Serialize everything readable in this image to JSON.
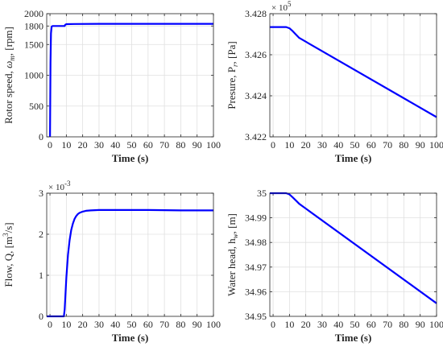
{
  "chart_data": [
    {
      "type": "line",
      "id": "rotor",
      "xlabel": "Time (s)",
      "ylabel": [
        "Rotor speed, ",
        "ω",
        "m",
        ", [rpm]"
      ],
      "xlim": [
        -2,
        100
      ],
      "ylim": [
        0,
        2000
      ],
      "xticks": [
        0,
        10,
        20,
        30,
        40,
        50,
        60,
        70,
        80,
        90,
        100
      ],
      "yticks": [
        0,
        500,
        1000,
        1500,
        1800,
        2000
      ],
      "ytick_labels": [
        "0",
        "500",
        "1000",
        "1500",
        "1800",
        "2000"
      ],
      "exponent_base": "",
      "exponent": "",
      "grid": true,
      "color": "#0000ff",
      "series": [
        {
          "x": [
            0,
            0.3,
            0.6,
            1.0,
            1.5,
            2,
            5,
            8.5,
            9,
            9.3,
            10,
            15,
            30,
            60,
            100
          ],
          "y": [
            0,
            1200,
            1680,
            1790,
            1800,
            1800,
            1800,
            1800,
            1800,
            1820,
            1830,
            1833,
            1835,
            1835,
            1835
          ]
        }
      ]
    },
    {
      "type": "line",
      "id": "pressure",
      "xlabel": "Time (s)",
      "ylabel": [
        "Presure, P",
        "r",
        ", [Pa]"
      ],
      "xlim": [
        -2,
        100
      ],
      "ylim": [
        342200,
        342800
      ],
      "xticks": [
        0,
        10,
        20,
        30,
        40,
        50,
        60,
        70,
        80,
        90,
        100
      ],
      "yticks": [
        342200,
        342400,
        342600,
        342800
      ],
      "ytick_labels": [
        "3.422",
        "3.424",
        "3.426",
        "3.428"
      ],
      "exponent_base": "× 10",
      "exponent": "5",
      "grid": true,
      "color": "#0000ff",
      "series": [
        {
          "x": [
            -2,
            0,
            8,
            10,
            12,
            14,
            16,
            100
          ],
          "y": [
            342735,
            342735,
            342735,
            342729,
            342715,
            342698,
            342682,
            342296
          ]
        }
      ]
    },
    {
      "type": "line",
      "id": "flow",
      "xlabel": "Time (s)",
      "ylabel": [
        "Flow, Q, [m",
        "3",
        "/s]"
      ],
      "xlim": [
        -2,
        100
      ],
      "ylim": [
        0,
        0.003
      ],
      "xticks": [
        0,
        10,
        20,
        30,
        40,
        50,
        60,
        70,
        80,
        90,
        100
      ],
      "yticks": [
        0,
        0.001,
        0.002,
        0.003
      ],
      "ytick_labels": [
        "0",
        "1",
        "2",
        "3"
      ],
      "exponent_base": "× 10",
      "exponent": "-3",
      "grid": true,
      "color": "#0000ff",
      "series": [
        {
          "x": [
            -2,
            0,
            5,
            8.5,
            9,
            10,
            11,
            12,
            13,
            14,
            15,
            16,
            17,
            18,
            20,
            22,
            25,
            30,
            40,
            60,
            80,
            100
          ],
          "y": [
            0,
            0,
            0,
            0,
            0.00017,
            0.00095,
            0.0015,
            0.00185,
            0.0021,
            0.00226,
            0.00237,
            0.00244,
            0.00249,
            0.00252,
            0.00255,
            0.00257,
            0.00258,
            0.00259,
            0.00259,
            0.00259,
            0.00258,
            0.00258
          ]
        }
      ]
    },
    {
      "type": "line",
      "id": "head",
      "xlabel": "Time (s)",
      "ylabel": [
        "Water head, h",
        "w",
        ", [m]"
      ],
      "xlim": [
        -2,
        100
      ],
      "ylim": [
        34.95,
        35
      ],
      "xticks": [
        0,
        10,
        20,
        30,
        40,
        50,
        60,
        70,
        80,
        90,
        100
      ],
      "yticks": [
        34.95,
        34.96,
        34.97,
        34.98,
        34.99,
        35
      ],
      "ytick_labels": [
        "34.95",
        "34.96",
        "34.97",
        "34.98",
        "34.99",
        "35"
      ],
      "exponent_base": "",
      "exponent": "",
      "grid": true,
      "color": "#0000ff",
      "series": [
        {
          "x": [
            -2,
            0,
            8,
            10,
            12,
            14,
            16,
            100
          ],
          "y": [
            35,
            35,
            35,
            34.9995,
            34.9983,
            34.997,
            34.9957,
            34.9553
          ]
        }
      ]
    }
  ]
}
